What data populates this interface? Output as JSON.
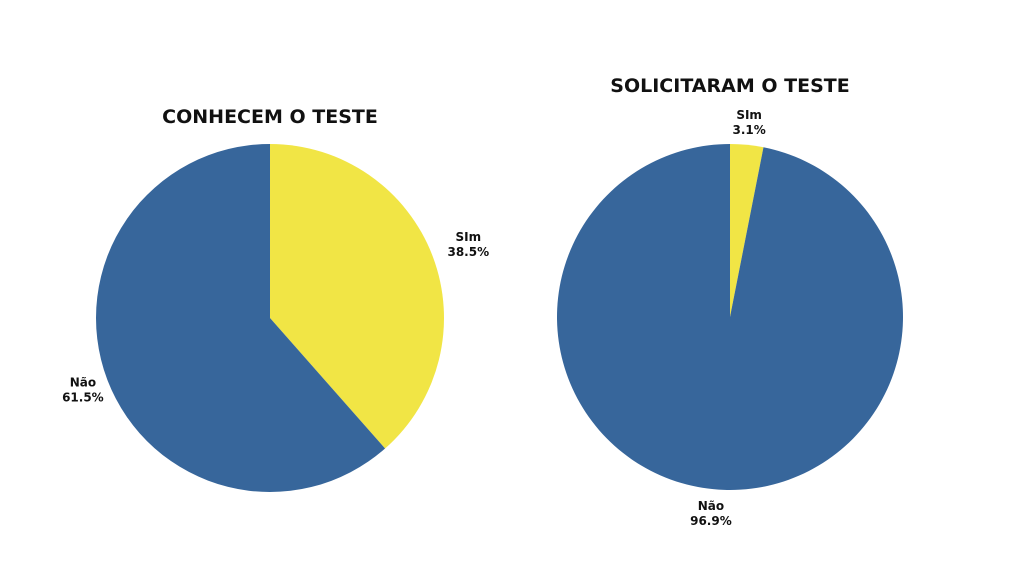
{
  "colors": {
    "sim": "#f1e545",
    "nao": "#37669b",
    "background": "#ffffff"
  },
  "chart_data": [
    {
      "type": "pie",
      "title": "CONHECEM O TESTE",
      "slices": [
        {
          "label": "SIm",
          "value": 38.5,
          "pct_label": "38.5%",
          "color": "#f1e545"
        },
        {
          "label": "Não",
          "value": 61.5,
          "pct_label": "61.5%",
          "color": "#37669b"
        }
      ]
    },
    {
      "type": "pie",
      "title": "SOLICITARAM O TESTE",
      "slices": [
        {
          "label": "SIm",
          "value": 3.1,
          "pct_label": "3.1%",
          "color": "#f1e545"
        },
        {
          "label": "Não",
          "value": 96.9,
          "pct_label": "96.9%",
          "color": "#37669b"
        }
      ]
    }
  ]
}
